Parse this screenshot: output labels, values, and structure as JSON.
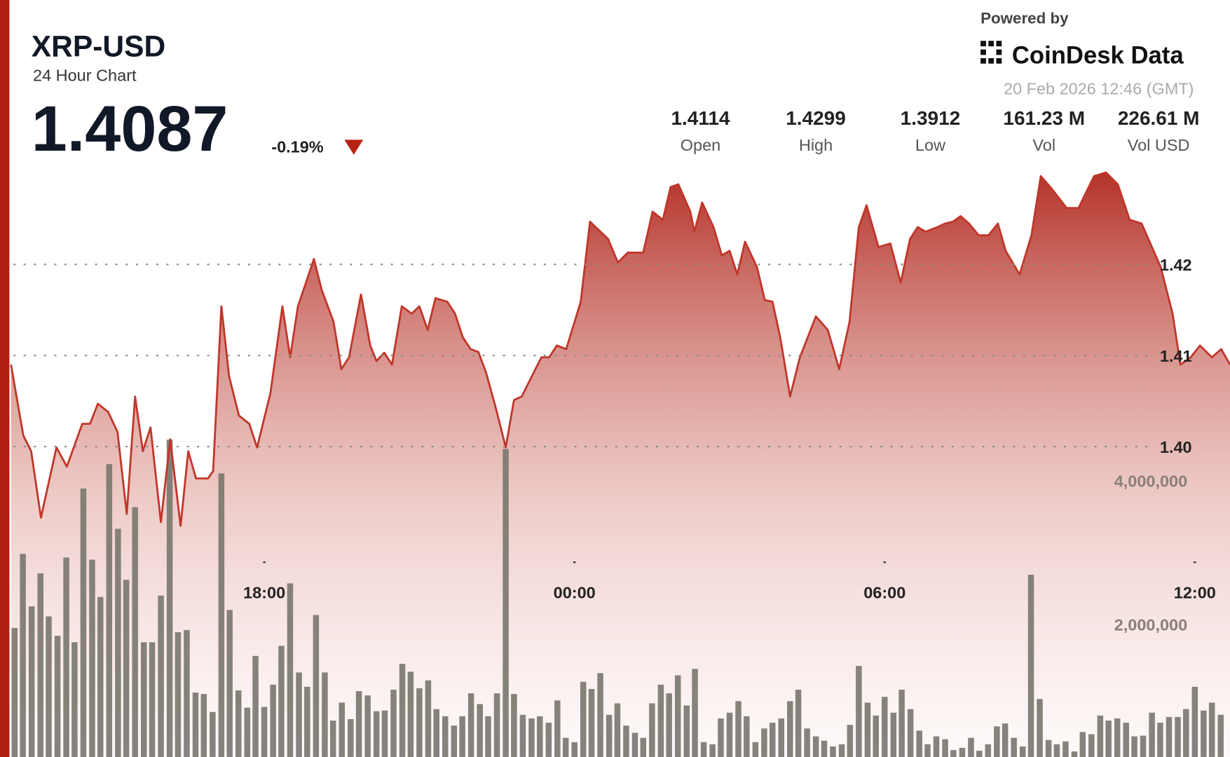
{
  "chart_data": {
    "type": "area",
    "title": "XRP-USD",
    "subtitle": "24 Hour Chart",
    "price": "1.4087",
    "change": "-0.19%",
    "powered_by": "Powered by",
    "brand": "CoinDesk Data",
    "timestamp": "20 Feb 2026 12:46 (GMT)",
    "stats": [
      {
        "value": "1.4114",
        "label": "Open"
      },
      {
        "value": "1.4299",
        "label": "High"
      },
      {
        "value": "1.3912",
        "label": "Low"
      },
      {
        "value": "161.23 M",
        "label": "Vol"
      },
      {
        "value": "226.61 M",
        "label": "Vol USD"
      }
    ],
    "xlim": [
      13.1,
      36.68
    ],
    "xticks": [
      {
        "value": 18,
        "label": "18:00"
      },
      {
        "value": 24,
        "label": "00:00"
      },
      {
        "value": 30,
        "label": "06:00"
      },
      {
        "value": 36,
        "label": "12:00"
      }
    ],
    "ylim": [
      1.3647,
      1.4305
    ],
    "yticks": [
      {
        "value": 1.4,
        "label": "1.40"
      },
      1.41,
      1.42
    ],
    "y2lim": [
      0,
      8340000
    ],
    "y2ticks": [
      {
        "value": 2000000,
        "label": "2,000,000"
      },
      {
        "value": 4000000,
        "label": "4,000,000"
      }
    ],
    "grid": true,
    "series": [
      {
        "type": "area",
        "color": "#c0362a",
        "x": [
          13.1,
          13.34,
          13.49,
          13.68,
          13.98,
          14.18,
          14.48,
          14.63,
          14.78,
          14.98,
          15.16,
          15.34,
          15.5,
          15.65,
          15.8,
          16.0,
          16.18,
          16.38,
          16.53,
          16.68,
          16.91,
          17.01,
          17.17,
          17.32,
          17.51,
          17.71,
          17.86,
          18.12,
          18.35,
          18.5,
          18.65,
          18.96,
          19.11,
          19.34,
          19.49,
          19.64,
          19.87,
          20.05,
          20.17,
          20.32,
          20.47,
          20.66,
          20.85,
          21.0,
          21.16,
          21.31,
          21.54,
          21.69,
          21.84,
          21.99,
          22.14,
          22.29,
          22.48,
          22.67,
          22.83,
          22.98,
          23.36,
          23.51,
          23.66,
          23.84,
          24.12,
          24.3,
          24.65,
          24.84,
          25.03,
          25.33,
          25.51,
          25.71,
          25.86,
          26.01,
          26.24,
          26.32,
          26.47,
          26.69,
          26.85,
          27.0,
          27.15,
          27.3,
          27.53,
          27.68,
          27.83,
          27.98,
          28.17,
          28.36,
          28.67,
          28.9,
          29.12,
          29.32,
          29.5,
          29.65,
          29.88,
          30.11,
          30.31,
          30.49,
          30.64,
          30.79,
          31.02,
          31.17,
          31.32,
          31.47,
          31.63,
          31.82,
          32.01,
          32.19,
          32.34,
          32.61,
          32.84,
          33.02,
          33.22,
          33.52,
          33.75,
          34.05,
          34.28,
          34.51,
          34.74,
          34.97,
          35.34,
          35.57,
          35.72,
          35.92,
          36.1,
          36.33,
          36.51,
          36.68
        ],
        "values": [
          1.409,
          1.4012,
          1.3995,
          1.3922,
          1.3999,
          1.3978,
          1.4025,
          1.4025,
          1.4047,
          1.4038,
          1.4016,
          1.3926,
          1.4055,
          1.3995,
          1.4021,
          1.3917,
          1.4008,
          1.3913,
          1.3995,
          1.3965,
          1.3965,
          1.3973,
          1.4154,
          1.4077,
          1.4034,
          1.4025,
          1.3999,
          1.4059,
          1.4154,
          1.4098,
          1.4154,
          1.4206,
          1.4172,
          1.4137,
          1.4085,
          1.4098,
          1.4167,
          1.4111,
          1.4094,
          1.4103,
          1.409,
          1.4154,
          1.4146,
          1.4154,
          1.4128,
          1.4163,
          1.4159,
          1.4146,
          1.412,
          1.4107,
          1.4104,
          1.4081,
          1.4042,
          1.3999,
          1.4051,
          1.4055,
          1.4098,
          1.4098,
          1.4111,
          1.4107,
          1.4159,
          1.4247,
          1.4228,
          1.4202,
          1.4213,
          1.4213,
          1.4258,
          1.4249,
          1.4285,
          1.4288,
          1.4258,
          1.4236,
          1.4268,
          1.4241,
          1.421,
          1.4215,
          1.4189,
          1.4225,
          1.4197,
          1.4161,
          1.4159,
          1.412,
          1.4055,
          1.4098,
          1.4143,
          1.4128,
          1.4085,
          1.4137,
          1.4241,
          1.4265,
          1.4219,
          1.4223,
          1.418,
          1.4228,
          1.4241,
          1.4236,
          1.4241,
          1.4245,
          1.4247,
          1.4253,
          1.4245,
          1.4232,
          1.4232,
          1.4245,
          1.4215,
          1.4189,
          1.4232,
          1.4297,
          1.4284,
          1.4262,
          1.4262,
          1.4297,
          1.4301,
          1.4288,
          1.4249,
          1.4245,
          1.4197,
          1.4146,
          1.409,
          1.4098,
          1.4111,
          1.4098,
          1.4107,
          1.409
        ]
      },
      {
        "type": "bar",
        "axis": "y2",
        "color": "#7b7870",
        "x": [
          13.17,
          13.33,
          13.5,
          13.67,
          13.83,
          14,
          14.17,
          14.33,
          14.5,
          14.67,
          14.83,
          15,
          15.17,
          15.33,
          15.5,
          15.67,
          15.83,
          16,
          16.17,
          16.33,
          16.5,
          16.67,
          16.83,
          17,
          17.17,
          17.33,
          17.5,
          17.67,
          17.83,
          18,
          18.17,
          18.33,
          18.5,
          18.67,
          18.83,
          19,
          19.17,
          19.33,
          19.5,
          19.67,
          19.83,
          20,
          20.17,
          20.33,
          20.5,
          20.67,
          20.83,
          21,
          21.17,
          21.33,
          21.5,
          21.67,
          21.83,
          22,
          22.17,
          22.33,
          22.5,
          22.67,
          22.83,
          23,
          23.17,
          23.33,
          23.5,
          23.67,
          23.83,
          24,
          24.17,
          24.33,
          24.5,
          24.67,
          24.83,
          25,
          25.17,
          25.33,
          25.5,
          25.67,
          25.83,
          26,
          26.17,
          26.33,
          26.5,
          26.67,
          26.83,
          27,
          27.17,
          27.33,
          27.5,
          27.67,
          27.83,
          28,
          28.17,
          28.33,
          28.5,
          28.67,
          28.83,
          29,
          29.17,
          29.33,
          29.5,
          29.67,
          29.83,
          30,
          30.17,
          30.33,
          30.5,
          30.67,
          30.83,
          31,
          31.17,
          31.33,
          31.5,
          31.67,
          31.83,
          32,
          32.17,
          32.33,
          32.5,
          32.67,
          32.83,
          33,
          33.17,
          33.33,
          33.5,
          33.67,
          33.83,
          34,
          34.17,
          34.33,
          34.5,
          34.67,
          34.83,
          35,
          35.17,
          35.33,
          35.5,
          35.67,
          35.83,
          36,
          36.17,
          36.33,
          36.5
        ],
        "values": [
          1950000,
          2980000,
          2250000,
          2710000,
          2110000,
          1840000,
          2930000,
          1750000,
          3890000,
          2900000,
          2380000,
          4230000,
          3330000,
          2620000,
          3630000,
          1750000,
          1750000,
          2400000,
          4570000,
          1890000,
          1920000,
          1050000,
          1030000,
          780000,
          4100000,
          2200000,
          1080000,
          840000,
          1560000,
          850000,
          1160000,
          1700000,
          2570000,
          1330000,
          1130000,
          2130000,
          1330000,
          660000,
          910000,
          680000,
          1070000,
          1010000,
          790000,
          800000,
          1090000,
          1450000,
          1340000,
          1110000,
          1220000,
          820000,
          720000,
          590000,
          720000,
          1040000,
          890000,
          720000,
          1040000,
          4440000,
          1030000,
          740000,
          690000,
          720000,
          630000,
          940000,
          420000,
          360000,
          1200000,
          1100000,
          1320000,
          740000,
          900000,
          590000,
          490000,
          420000,
          900000,
          1160000,
          1040000,
          1290000,
          870000,
          1380000,
          360000,
          330000,
          690000,
          770000,
          930000,
          720000,
          360000,
          550000,
          630000,
          690000,
          930000,
          1090000,
          550000,
          440000,
          380000,
          300000,
          330000,
          600000,
          1420000,
          910000,
          730000,
          990000,
          770000,
          1090000,
          820000,
          520000,
          330000,
          440000,
          400000,
          250000,
          280000,
          420000,
          240000,
          330000,
          580000,
          620000,
          420000,
          300000,
          2690000,
          960000,
          390000,
          330000,
          370000,
          230000,
          500000,
          470000,
          730000,
          660000,
          690000,
          630000,
          440000,
          450000,
          770000,
          630000,
          710000,
          710000,
          820000,
          1130000,
          800000,
          910000,
          740000
        ]
      }
    ]
  }
}
